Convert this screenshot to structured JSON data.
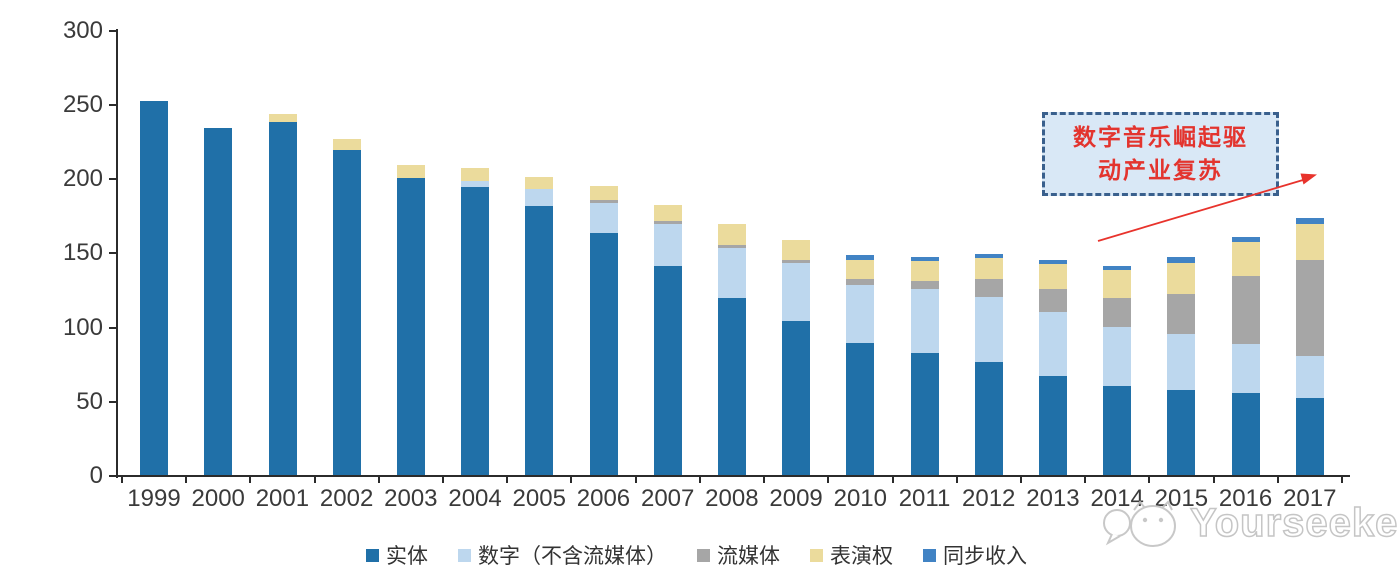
{
  "chart_data": {
    "type": "bar",
    "stacked": true,
    "title": "",
    "xlabel": "",
    "ylabel": "",
    "categories": [
      "1999",
      "2000",
      "2001",
      "2002",
      "2003",
      "2004",
      "2005",
      "2006",
      "2007",
      "2008",
      "2009",
      "2010",
      "2011",
      "2012",
      "2013",
      "2014",
      "2015",
      "2016",
      "2017"
    ],
    "series": [
      {
        "name": "实体",
        "color": "#2070a8",
        "values": [
          252,
          234,
          238,
          219,
          200,
          194,
          181,
          163,
          141,
          119,
          104,
          89,
          82,
          76,
          67,
          60,
          57,
          55,
          52
        ]
      },
      {
        "name": "数字（不含流媒体）",
        "color": "#bdd7ee",
        "values": [
          0,
          0,
          0,
          0,
          0,
          4,
          12,
          20,
          28,
          34,
          39,
          39,
          43,
          44,
          43,
          40,
          38,
          33,
          28
        ]
      },
      {
        "name": "流媒体",
        "color": "#a6a6a6",
        "values": [
          0,
          0,
          0,
          0,
          0,
          0,
          0,
          2,
          2,
          2,
          2,
          4,
          6,
          12,
          15,
          19,
          27,
          46,
          65
        ]
      },
      {
        "name": "表演权",
        "color": "#ebdb9c",
        "values": [
          0,
          0,
          5,
          7,
          9,
          9,
          8,
          10,
          11,
          14,
          13,
          13,
          13,
          14,
          17,
          19,
          21,
          23,
          24
        ]
      },
      {
        "name": "同步收入",
        "color": "#4183c4",
        "values": [
          0,
          0,
          0,
          0,
          0,
          0,
          0,
          0,
          0,
          0,
          0,
          3,
          3,
          3,
          3,
          3,
          4,
          3,
          4
        ]
      }
    ],
    "ylim": [
      0,
      300
    ],
    "ytick_step": 50,
    "ytick_labels": [
      "0",
      "50",
      "100",
      "150",
      "200",
      "250",
      "300"
    ],
    "grid": false,
    "legend_position": "bottom"
  },
  "annotation": {
    "line1": "数字音乐崛起驱",
    "line2": "动产业复苏",
    "text_color": "#e3342e",
    "border_color": "#3a608d",
    "fill_color": "#d9e8f6",
    "arrow_color": "#e8332c"
  },
  "watermark": {
    "text": "Yourseeker"
  },
  "axis": {
    "line_color": "#2b2b2b",
    "label_color": "#3a3a3a"
  }
}
